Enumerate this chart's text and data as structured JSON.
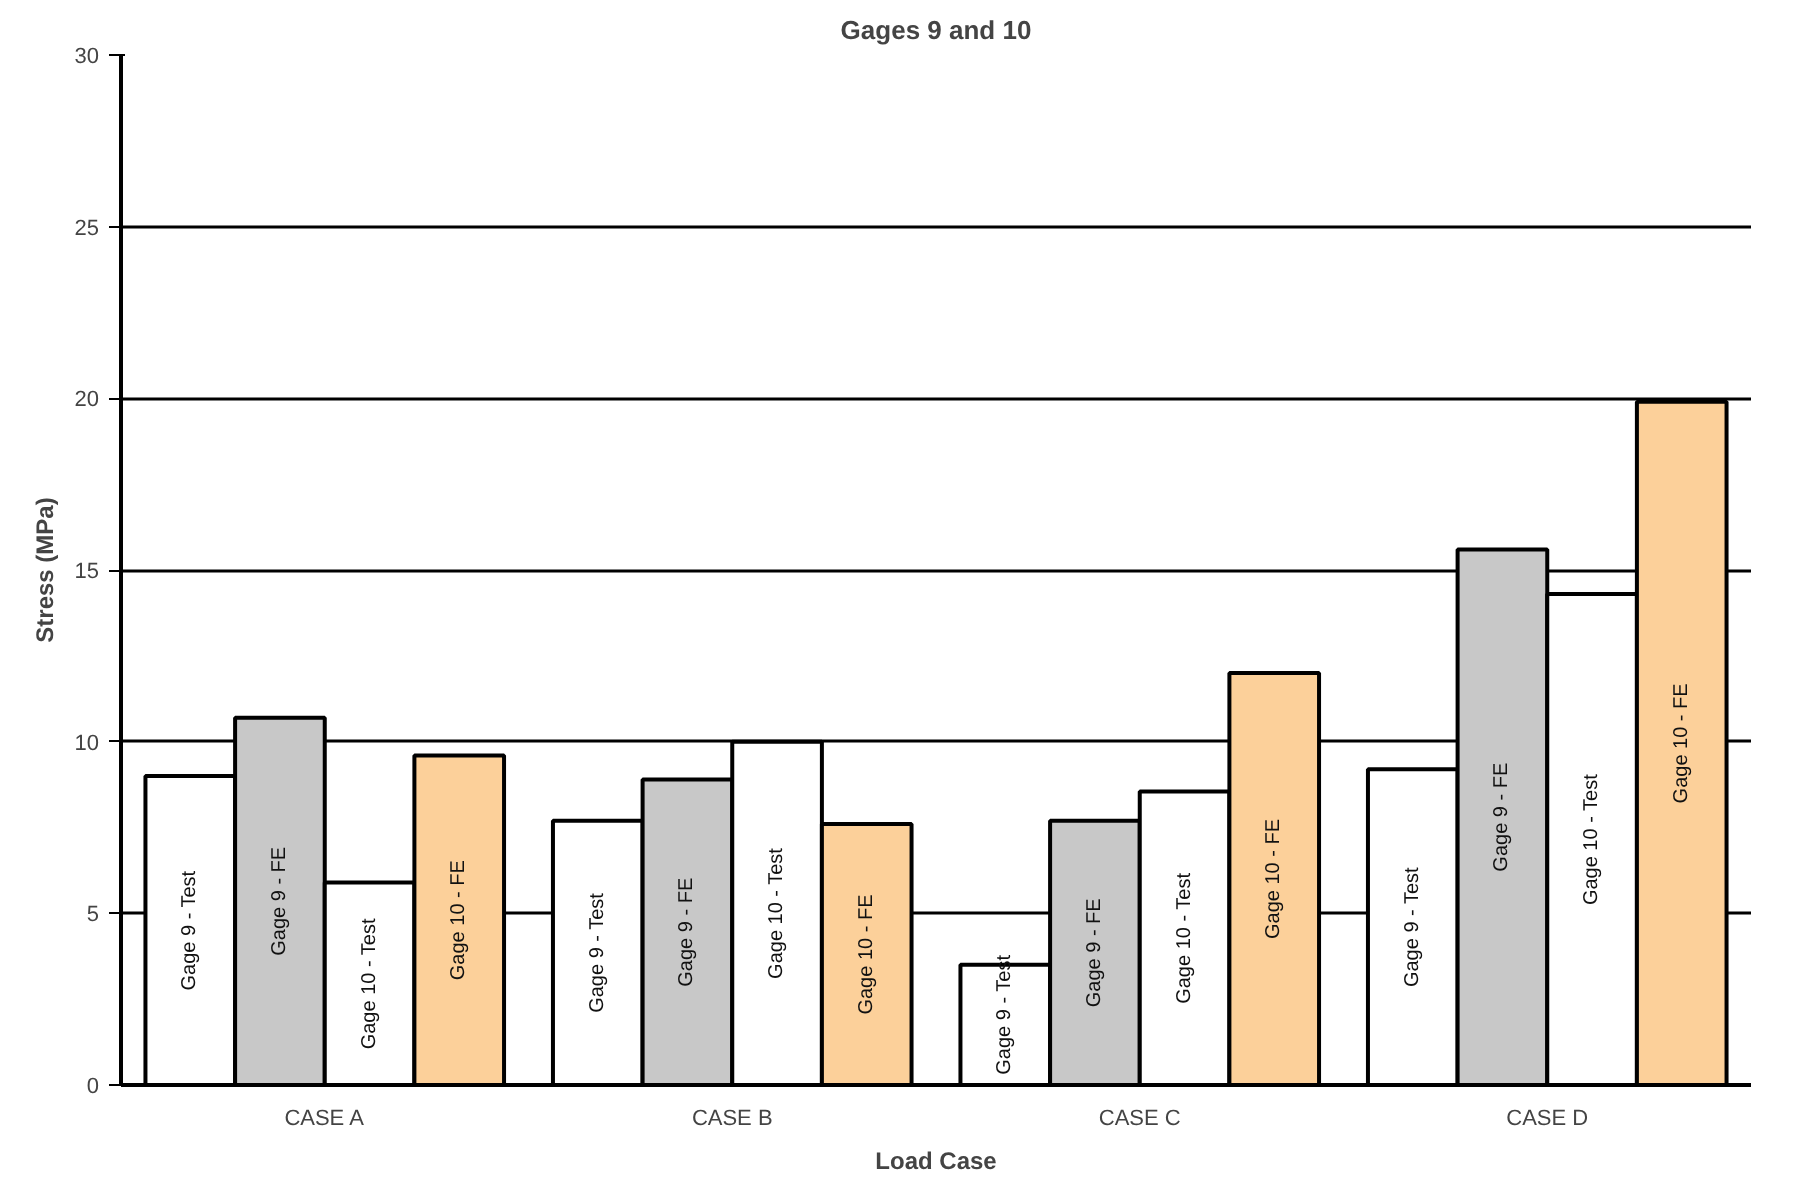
{
  "chart_data": {
    "type": "bar",
    "title": "Gages 9 and 10",
    "xlabel": "Load Case",
    "ylabel": "Stress (MPa)",
    "categories": [
      "CASE A",
      "CASE B",
      "CASE C",
      "CASE D"
    ],
    "series": [
      {
        "name": "Gage 9 - Test",
        "color": "#ffffff",
        "values": [
          9.0,
          7.7,
          3.5,
          9.2
        ]
      },
      {
        "name": "Gage 9 - FE",
        "color": "#c8c8c8",
        "values": [
          10.7,
          8.9,
          7.7,
          15.6
        ]
      },
      {
        "name": "Gage 10 - Test",
        "color": "#ffffff",
        "values": [
          5.9,
          10.0,
          8.55,
          14.3
        ]
      },
      {
        "name": "Gage 10 - FE",
        "color": "#fcd09a",
        "values": [
          9.6,
          7.6,
          12.0,
          19.9
        ]
      }
    ],
    "ylim": [
      0,
      30
    ],
    "yticks": [
      0,
      5,
      10,
      15,
      20,
      25,
      30
    ],
    "grid": "y"
  }
}
